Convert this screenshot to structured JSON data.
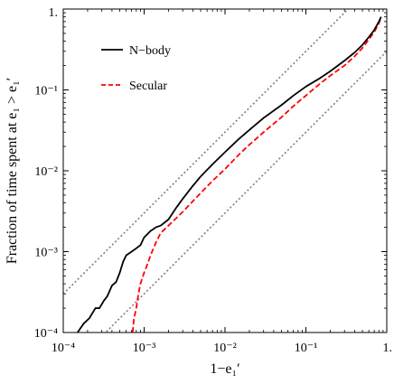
{
  "chart_data": {
    "type": "line",
    "title": "",
    "xlabel": "1−e₁′",
    "ylabel": "Fraction of time spent at e₁ > e₁′",
    "x_scale": "log",
    "y_scale": "log",
    "xlim": [
      0.0001,
      1.0
    ],
    "ylim": [
      0.0001,
      1.0
    ],
    "grid": false,
    "legend_position": "upper-left",
    "x_ticks": [
      {
        "value": 0.0001,
        "label": "10⁻⁴"
      },
      {
        "value": 0.001,
        "label": "10⁻³"
      },
      {
        "value": 0.01,
        "label": "10⁻²"
      },
      {
        "value": 0.1,
        "label": "10⁻¹"
      },
      {
        "value": 1.0,
        "label": "1."
      }
    ],
    "y_ticks": [
      {
        "value": 0.0001,
        "label": "10⁻⁴"
      },
      {
        "value": 0.001,
        "label": "10⁻³"
      },
      {
        "value": 0.01,
        "label": "10⁻²"
      },
      {
        "value": 0.1,
        "label": "10⁻¹"
      },
      {
        "value": 1.0,
        "label": "1."
      }
    ],
    "series": [
      {
        "name": "N−body",
        "color": "#000000",
        "style": "solid",
        "x": [
          0.00015,
          0.00018,
          0.00021,
          0.00025,
          0.00028,
          0.00032,
          0.00035,
          0.0004,
          0.00045,
          0.0005,
          0.00055,
          0.0006,
          0.0007,
          0.0008,
          0.0009,
          0.001,
          0.0012,
          0.0014,
          0.0016,
          0.0018,
          0.002,
          0.0025,
          0.003,
          0.004,
          0.005,
          0.007,
          0.01,
          0.015,
          0.02,
          0.03,
          0.05,
          0.07,
          0.1,
          0.15,
          0.2,
          0.3,
          0.4,
          0.5,
          0.6,
          0.7,
          0.8,
          0.85
        ],
        "y": [
          0.0001,
          0.00013,
          0.00015,
          0.0002,
          0.0002,
          0.00025,
          0.00028,
          0.00038,
          0.00042,
          0.00055,
          0.00075,
          0.0009,
          0.001,
          0.0011,
          0.0012,
          0.0015,
          0.0018,
          0.002,
          0.0021,
          0.0023,
          0.0025,
          0.0035,
          0.0045,
          0.0065,
          0.0085,
          0.012,
          0.017,
          0.025,
          0.032,
          0.045,
          0.065,
          0.085,
          0.11,
          0.14,
          0.17,
          0.23,
          0.29,
          0.36,
          0.45,
          0.55,
          0.7,
          0.8
        ]
      },
      {
        "name": "Secular",
        "color": "#ff0000",
        "style": "dashed",
        "x": [
          0.00072,
          0.00075,
          0.0008,
          0.00085,
          0.0009,
          0.001,
          0.0011,
          0.0012,
          0.0014,
          0.0016,
          0.002,
          0.0025,
          0.003,
          0.004,
          0.005,
          0.007,
          0.01,
          0.015,
          0.02,
          0.03,
          0.05,
          0.07,
          0.1,
          0.15,
          0.2,
          0.3,
          0.4,
          0.5,
          0.6,
          0.7,
          0.8,
          0.85
        ],
        "y": [
          0.0001,
          0.00015,
          0.0002,
          0.0003,
          0.0004,
          0.00055,
          0.0007,
          0.0009,
          0.0013,
          0.0017,
          0.0021,
          0.0026,
          0.0031,
          0.0042,
          0.0053,
          0.0075,
          0.0105,
          0.016,
          0.021,
          0.03,
          0.046,
          0.063,
          0.085,
          0.12,
          0.15,
          0.2,
          0.26,
          0.33,
          0.42,
          0.52,
          0.67,
          0.78
        ]
      },
      {
        "name": "",
        "color": "#7f7f7f",
        "style": "dotted",
        "x": [
          0.0001,
          1.0
        ],
        "y": [
          0.0003,
          3.0
        ]
      },
      {
        "name": "",
        "color": "#7f7f7f",
        "style": "dotted",
        "x": [
          0.0001,
          1.0
        ],
        "y": [
          3e-05,
          0.3
        ]
      }
    ]
  }
}
